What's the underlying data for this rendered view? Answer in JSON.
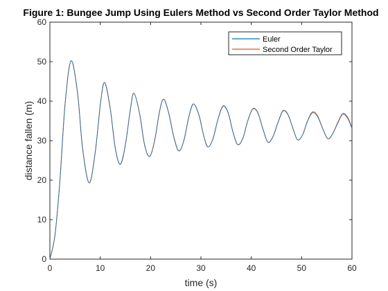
{
  "chart_data": {
    "type": "line",
    "title": "Figure 1: Bungee Jump Using Eulers Method vs Second Order Taylor Method",
    "xlabel": "time (s)",
    "ylabel": "distance fallen (m)",
    "xlim": [
      0,
      60
    ],
    "ylim": [
      0,
      60
    ],
    "x_ticks": [
      0,
      10,
      20,
      30,
      40,
      50,
      60
    ],
    "y_ticks": [
      0,
      10,
      20,
      30,
      40,
      50,
      60
    ],
    "grid": false,
    "legend_position": "top-right",
    "series": [
      {
        "name": "Euler",
        "color": "#0072BD",
        "points": [
          [
            0,
            0
          ],
          [
            1,
            6
          ],
          [
            2,
            20
          ],
          [
            3,
            39
          ],
          [
            4.2,
            50.2
          ],
          [
            5.5,
            42
          ],
          [
            6.5,
            28
          ],
          [
            7.8,
            19.3
          ],
          [
            9,
            27
          ],
          [
            10.1,
            40
          ],
          [
            10.9,
            44.7
          ],
          [
            12,
            38
          ],
          [
            13,
            28
          ],
          [
            14,
            24
          ],
          [
            15,
            29
          ],
          [
            16,
            38
          ],
          [
            16.7,
            42
          ],
          [
            17.8,
            37
          ],
          [
            18.8,
            29
          ],
          [
            19.8,
            26
          ],
          [
            20.8,
            30
          ],
          [
            21.8,
            37.5
          ],
          [
            22.6,
            40.5
          ],
          [
            23.6,
            37
          ],
          [
            24.6,
            31
          ],
          [
            25.6,
            27.4
          ],
          [
            26.6,
            30
          ],
          [
            27.6,
            36
          ],
          [
            28.5,
            39.3
          ],
          [
            29.6,
            36.5
          ],
          [
            30.6,
            31
          ],
          [
            31.4,
            28.4
          ],
          [
            32.4,
            30.5
          ],
          [
            33.4,
            35.5
          ],
          [
            34.4,
            38.7
          ],
          [
            35.4,
            37
          ],
          [
            36.4,
            32
          ],
          [
            37.3,
            29
          ],
          [
            38.3,
            30.5
          ],
          [
            39.3,
            35
          ],
          [
            40.3,
            38
          ],
          [
            41.3,
            37
          ],
          [
            42.3,
            33
          ],
          [
            43.3,
            29.6
          ],
          [
            44.3,
            31
          ],
          [
            45.3,
            34.5
          ],
          [
            46.3,
            37.5
          ],
          [
            47.3,
            36.5
          ],
          [
            48.3,
            33
          ],
          [
            49.2,
            30.2
          ],
          [
            50.2,
            31.5
          ],
          [
            51.2,
            35
          ],
          [
            52.2,
            37.1
          ],
          [
            53.2,
            36
          ],
          [
            54.2,
            33
          ],
          [
            55.2,
            30.5
          ],
          [
            56.2,
            31.8
          ],
          [
            57.2,
            34.5
          ],
          [
            58.2,
            36.7
          ],
          [
            59.2,
            35.5
          ],
          [
            60,
            33
          ]
        ]
      },
      {
        "name": "Second Order Taylor",
        "color": "#D95319",
        "points": [
          [
            0,
            0
          ],
          [
            1,
            6
          ],
          [
            2,
            20
          ],
          [
            3,
            39
          ],
          [
            4.2,
            50.2
          ],
          [
            5.5,
            42
          ],
          [
            6.5,
            28
          ],
          [
            7.8,
            19.3
          ],
          [
            9,
            27
          ],
          [
            10.1,
            40
          ],
          [
            10.9,
            44.7
          ],
          [
            12,
            38
          ],
          [
            13,
            28
          ],
          [
            14,
            24
          ],
          [
            15,
            29
          ],
          [
            16,
            38
          ],
          [
            16.7,
            42
          ],
          [
            17.8,
            37
          ],
          [
            18.8,
            29
          ],
          [
            19.8,
            26
          ],
          [
            20.8,
            30
          ],
          [
            21.8,
            37.5
          ],
          [
            22.6,
            40.5
          ],
          [
            23.6,
            37
          ],
          [
            24.6,
            31
          ],
          [
            25.6,
            27.4
          ],
          [
            26.6,
            30
          ],
          [
            27.6,
            36
          ],
          [
            28.5,
            39.3
          ],
          [
            29.6,
            36.5
          ],
          [
            30.6,
            31
          ],
          [
            31.4,
            28.4
          ],
          [
            32.4,
            30.5
          ],
          [
            33.4,
            35.5
          ],
          [
            34.4,
            38.8
          ],
          [
            35.4,
            37.1
          ],
          [
            36.4,
            32
          ],
          [
            37.3,
            29
          ],
          [
            38.3,
            30.5
          ],
          [
            39.3,
            35
          ],
          [
            40.3,
            38.1
          ],
          [
            41.3,
            37.1
          ],
          [
            42.3,
            33
          ],
          [
            43.3,
            29.6
          ],
          [
            44.3,
            31
          ],
          [
            45.3,
            34.6
          ],
          [
            46.3,
            37.6
          ],
          [
            47.3,
            36.6
          ],
          [
            48.3,
            33
          ],
          [
            49.2,
            30.2
          ],
          [
            50.2,
            31.5
          ],
          [
            51.2,
            35.1
          ],
          [
            52.2,
            37.3
          ],
          [
            53.2,
            36.2
          ],
          [
            54.2,
            33
          ],
          [
            55.2,
            30.5
          ],
          [
            56.2,
            31.8
          ],
          [
            57.2,
            34.7
          ],
          [
            58.2,
            36.9
          ],
          [
            59.2,
            35.8
          ],
          [
            60,
            33.2
          ]
        ]
      }
    ]
  }
}
